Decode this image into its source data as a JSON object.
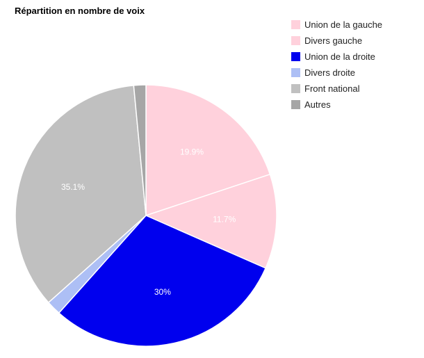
{
  "chart_data": {
    "type": "pie",
    "title": "Répartition en nombre de voix",
    "legend_position": "top-right",
    "slices": [
      {
        "name": "Union de la gauche",
        "value": 19.9,
        "label": "19.9%",
        "color": "#ffd1dc"
      },
      {
        "name": "Divers gauche",
        "value": 11.7,
        "label": "11.7%",
        "color": "#ffd1dc"
      },
      {
        "name": "Union de la droite",
        "value": 30.0,
        "label": "30%",
        "color": "#0000ee"
      },
      {
        "name": "Divers droite",
        "value": 1.8,
        "label": "",
        "color": "#adbff5"
      },
      {
        "name": "Front national",
        "value": 35.1,
        "label": "35.1%",
        "color": "#c0c0c0"
      },
      {
        "name": "Autres",
        "value": 1.5,
        "label": "",
        "color": "#a6a6a6"
      }
    ]
  }
}
